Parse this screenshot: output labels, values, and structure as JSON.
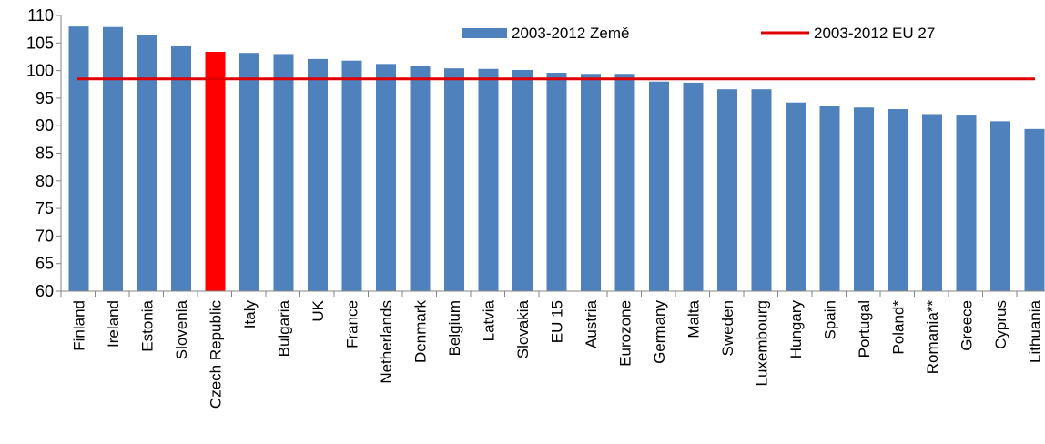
{
  "chart_data": {
    "type": "bar",
    "categories": [
      "Finland",
      "Ireland",
      "Estonia",
      "Slovenia",
      "Czech Republic",
      "Italy",
      "Bulgaria",
      "UK",
      "France",
      "Netherlands",
      "Denmark",
      "Belgium",
      "Latvia",
      "Slovakia",
      "EU 15",
      "Austria",
      "Eurozone",
      "Germany",
      "Malta",
      "Sweden",
      "Luxembourg",
      "Hungary",
      "Spain",
      "Portugal",
      "Poland*",
      "Romania**",
      "Greece",
      "Cyprus",
      "Lithuania"
    ],
    "series": [
      {
        "name": "2003-2012 Země",
        "type": "bar",
        "color": "#4F81BD",
        "values": [
          108.0,
          107.9,
          106.4,
          104.4,
          103.4,
          103.2,
          103.0,
          102.1,
          101.8,
          101.2,
          100.8,
          100.4,
          100.3,
          100.1,
          99.6,
          99.4,
          99.4,
          98.0,
          97.8,
          96.6,
          96.6,
          94.2,
          93.5,
          93.3,
          93.0,
          92.1,
          92.0,
          90.8,
          89.4
        ]
      },
      {
        "name": "2003-2012 EU 27",
        "type": "line",
        "color": "#E00000",
        "value": 98.5
      }
    ],
    "highlight": {
      "category": "Czech Republic",
      "color": "#FF0000"
    },
    "y_ticks": [
      "60",
      "65",
      "70",
      "75",
      "80",
      "85",
      "90",
      "95",
      "100",
      "105",
      "110"
    ],
    "ylim": [
      60,
      110
    ],
    "grid": false,
    "legend_position": "top"
  }
}
